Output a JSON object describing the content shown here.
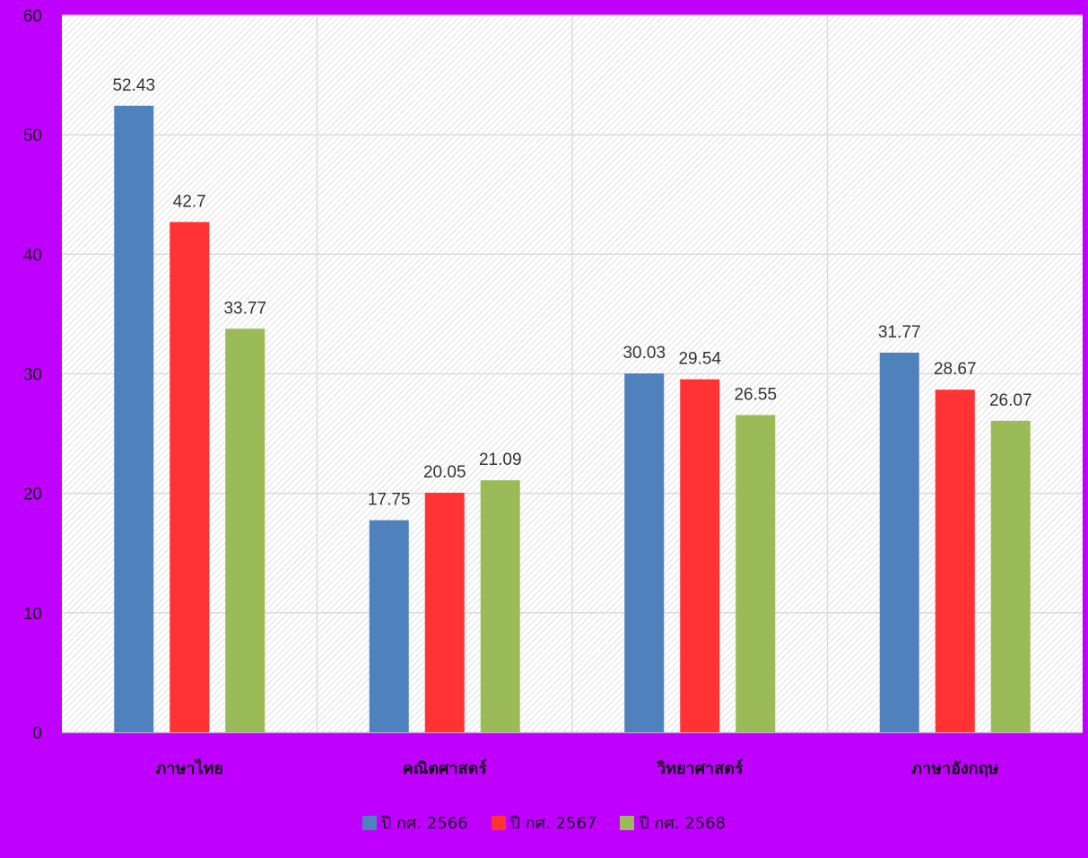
{
  "chart_data": {
    "type": "bar",
    "title": "",
    "xlabel": "",
    "ylabel": "",
    "ylim": [
      0,
      60
    ],
    "yticks": [
      0,
      10,
      20,
      30,
      40,
      50,
      60
    ],
    "grid": true,
    "legend_position": "bottom",
    "categories": [
      "ภาษาไทย",
      "คณิตศาสตร์",
      "วิทยาศาสตร์",
      "ภาษาอังกฤษ"
    ],
    "series": [
      {
        "name": "ปี กศ. 2566",
        "color": "#4f81bd",
        "values": [
          52.43,
          17.75,
          30.03,
          31.77
        ]
      },
      {
        "name": "ปี กศ. 2567",
        "color": "#ff3333",
        "values": [
          42.7,
          20.05,
          29.54,
          28.67
        ]
      },
      {
        "name": "ปี กศ. 2568",
        "color": "#9bbb59",
        "values": [
          33.77,
          21.09,
          26.55,
          26.07
        ]
      }
    ]
  }
}
